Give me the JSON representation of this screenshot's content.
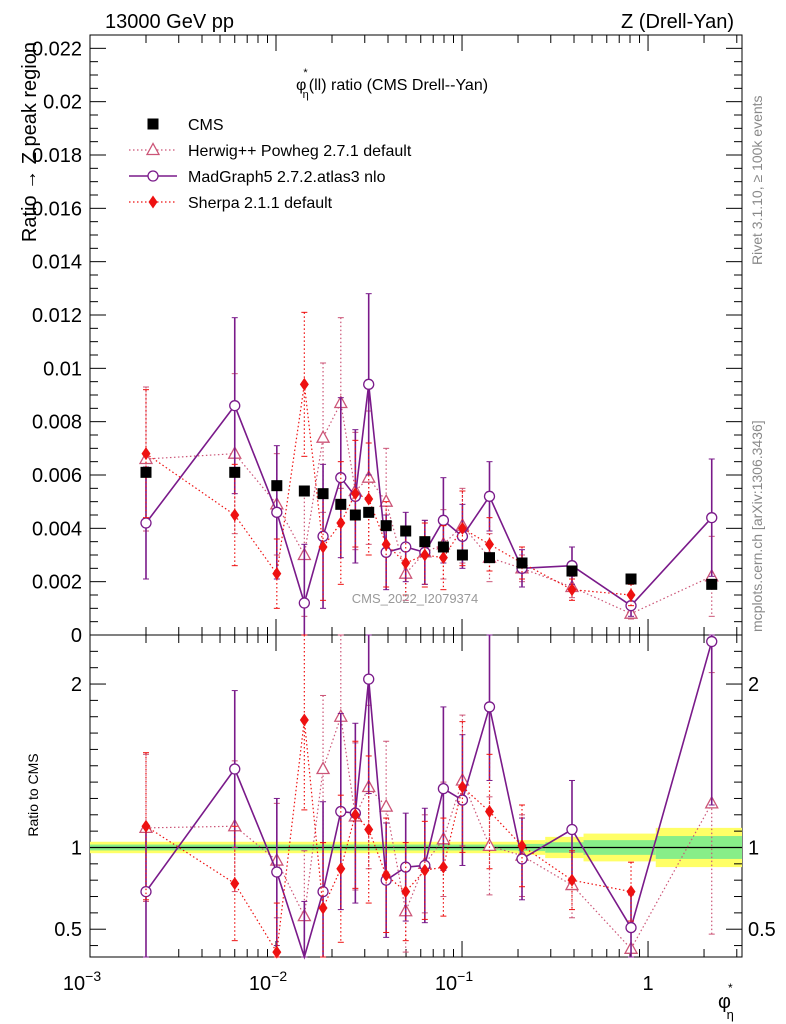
{
  "header": {
    "left": "13000 GeV pp",
    "right": "Z (Drell-Yan)"
  },
  "side": {
    "rivet": "Rivet 3.1.10, ≥ 100k events",
    "mcplots": "mcplots.cern.ch [arXiv:1306.3436]"
  },
  "watermark": "CMS_2022_I2079374",
  "colors": {
    "cms": "#000000",
    "herwig": "#cc5577",
    "madgraph": "#7a1a8a",
    "sherpa": "#ee1111",
    "band_inner": "#88ee88",
    "band_outer": "#ffff66"
  },
  "chart_data": {
    "type": "scatter",
    "title": "φ∗η(ll) ratio (CMS Drell--Yan)",
    "title_parts": {
      "phi": "φ",
      "star": "*",
      "eta": "η",
      "rest": "(ll) ratio (CMS Drell--Yan)"
    },
    "xlabel": {
      "phi": "φ",
      "star": "*",
      "eta": "η"
    },
    "ylabel": "Ratio → Z peak region",
    "ratio_ylabel": "Ratio to CMS",
    "xscale": "log",
    "xlim": [
      0.001,
      3.2
    ],
    "ylim": [
      0,
      0.0225
    ],
    "ratio_ylim": [
      0.33,
      2.3
    ],
    "x_ticks": [
      {
        "value": 0.001,
        "base": "10",
        "exp": "−3"
      },
      {
        "value": 0.01,
        "base": "10",
        "exp": "−2"
      },
      {
        "value": 0.1,
        "base": "10",
        "exp": "−1"
      },
      {
        "value": 1,
        "base": "1",
        "exp": ""
      }
    ],
    "y_ticks": [
      {
        "value": 0,
        "label": "0"
      },
      {
        "value": 0.002,
        "label": "0.002"
      },
      {
        "value": 0.004,
        "label": "0.004"
      },
      {
        "value": 0.006,
        "label": "0.006"
      },
      {
        "value": 0.008,
        "label": "0.008"
      },
      {
        "value": 0.01,
        "label": "0.01"
      },
      {
        "value": 0.012,
        "label": "0.012"
      },
      {
        "value": 0.014,
        "label": "0.014"
      },
      {
        "value": 0.016,
        "label": "0.016"
      },
      {
        "value": 0.018,
        "label": "0.018"
      },
      {
        "value": 0.02,
        "label": "0.02"
      },
      {
        "value": 0.022,
        "label": "0.022"
      }
    ],
    "ratio_ticks": [
      {
        "value": 0.5,
        "label": "0.5"
      },
      {
        "value": 1,
        "label": "1"
      },
      {
        "value": 2,
        "label": "2"
      }
    ],
    "x": [
      0.002,
      0.006,
      0.0101,
      0.0142,
      0.0179,
      0.0223,
      0.0267,
      0.0315,
      0.0391,
      0.0498,
      0.0631,
      0.0794,
      0.1005,
      0.1405,
      0.2101,
      0.3901,
      0.8101,
      2.2
    ],
    "band_edges": [
      0.001,
      0.2,
      0.28,
      0.45,
      1.1,
      3.2
    ],
    "band_inner": [
      0.018,
      0.022,
      0.032,
      0.045,
      0.07
    ],
    "band_outer": [
      0.035,
      0.045,
      0.065,
      0.085,
      0.12
    ],
    "legend": [
      {
        "name": "CMS",
        "marker": "square",
        "line": "none"
      },
      {
        "name": "Herwig++ Powheg 2.7.1 default",
        "marker": "triangle-open",
        "line": "dotted"
      },
      {
        "name": "MadGraph5 2.7.2.atlas3 nlo",
        "marker": "circle-open",
        "line": "solid"
      },
      {
        "name": "Sherpa 2.1.1 default",
        "marker": "diamond",
        "line": "dotted"
      }
    ],
    "series": [
      {
        "name": "CMS",
        "values": [
          0.0061,
          0.0061,
          0.0056,
          0.0054,
          0.0053,
          0.0049,
          0.0045,
          0.0046,
          0.0041,
          0.0039,
          0.0035,
          0.0033,
          0.003,
          0.0029,
          0.0027,
          0.0024,
          0.0021,
          0.0019
        ],
        "errors": [
          0.0003,
          0.0003,
          0.0003,
          0.0003,
          0.0003,
          0.0003,
          0.0003,
          0.0003,
          0.0003,
          0.0003,
          0.0003,
          0.0003,
          0.0003,
          0.0003,
          0.0003,
          0.0003,
          0.0003,
          0.0003
        ]
      },
      {
        "name": "Herwig++ Powheg 2.7.1 default",
        "values": [
          0.0066,
          0.0068,
          0.0049,
          0.003,
          0.0074,
          0.0087,
          0.0054,
          0.0059,
          0.005,
          0.0023,
          0.0031,
          0.0034,
          0.0041,
          0.0029,
          0.0025,
          0.0018,
          0.0008,
          0.0022
        ],
        "errors": [
          0.0027,
          0.003,
          0.0019,
          0.0023,
          0.0028,
          0.0032,
          0.0022,
          0.0025,
          0.002,
          0.001,
          0.0012,
          0.0013,
          0.0014,
          0.0009,
          0.0005,
          0.0004,
          0.0002,
          0.0015
        ],
        "ratio": [
          1.12,
          1.13,
          0.92,
          0.58,
          1.48,
          1.8,
          1.19,
          1.37,
          1.25,
          0.61,
          0.9,
          1.05,
          1.41,
          1.01,
          0.95,
          0.77,
          0.38,
          1.27
        ],
        "ratio_errors": [
          0.45,
          0.4,
          0.35,
          0.4,
          0.45,
          0.6,
          0.45,
          0.5,
          0.4,
          0.25,
          0.3,
          0.35,
          0.4,
          0.3,
          0.25,
          0.2,
          0.15,
          0.8
        ]
      },
      {
        "name": "MadGraph5 2.7.2.atlas3 nlo",
        "values": [
          0.0042,
          0.0086,
          0.0046,
          0.0012,
          0.0037,
          0.0059,
          0.0052,
          0.0094,
          0.0031,
          0.0033,
          0.0031,
          0.0043,
          0.0037,
          0.0052,
          0.0025,
          0.0026,
          0.0011,
          0.0044
        ],
        "errors": [
          0.0021,
          0.0033,
          0.0025,
          0.0022,
          0.0027,
          0.003,
          0.0025,
          0.0034,
          0.0014,
          0.0013,
          0.0012,
          0.0016,
          0.0012,
          0.0013,
          0.0007,
          0.0007,
          0.0004,
          0.0022
        ],
        "ratio": [
          0.73,
          1.48,
          0.85,
          0.22,
          0.73,
          1.22,
          1.21,
          2.03,
          0.8,
          0.88,
          0.89,
          1.36,
          1.29,
          1.86,
          0.93,
          1.11,
          0.51,
          2.26
        ],
        "ratio_errors": [
          0.4,
          0.48,
          0.45,
          0.45,
          0.55,
          0.6,
          0.55,
          0.7,
          0.35,
          0.33,
          0.35,
          0.5,
          0.4,
          0.45,
          0.25,
          0.3,
          0.2,
          1.0
        ]
      },
      {
        "name": "Sherpa 2.1.1 default",
        "values": [
          0.0068,
          0.0045,
          0.0023,
          0.0094,
          0.0033,
          0.0042,
          0.0053,
          0.0051,
          0.0034,
          0.0027,
          0.003,
          0.0029,
          0.004,
          0.0034,
          0.0027,
          0.0017,
          0.0015,
          null
        ],
        "errors": [
          0.0024,
          0.0019,
          0.0013,
          0.0027,
          0.002,
          0.0023,
          0.002,
          0.0021,
          0.0016,
          0.0012,
          0.0012,
          0.0012,
          0.0014,
          0.001,
          0.0006,
          0.0004,
          0.0004,
          null
        ],
        "ratio": [
          1.13,
          0.78,
          0.36,
          1.78,
          0.63,
          0.87,
          1.2,
          1.11,
          0.83,
          0.73,
          0.86,
          0.88,
          1.37,
          1.22,
          1.01,
          0.8,
          0.73,
          null
        ],
        "ratio_errors": [
          0.45,
          0.35,
          0.3,
          0.55,
          0.4,
          0.45,
          0.45,
          0.45,
          0.35,
          0.3,
          0.3,
          0.3,
          0.4,
          0.35,
          0.25,
          0.18,
          0.18,
          null
        ]
      }
    ]
  }
}
